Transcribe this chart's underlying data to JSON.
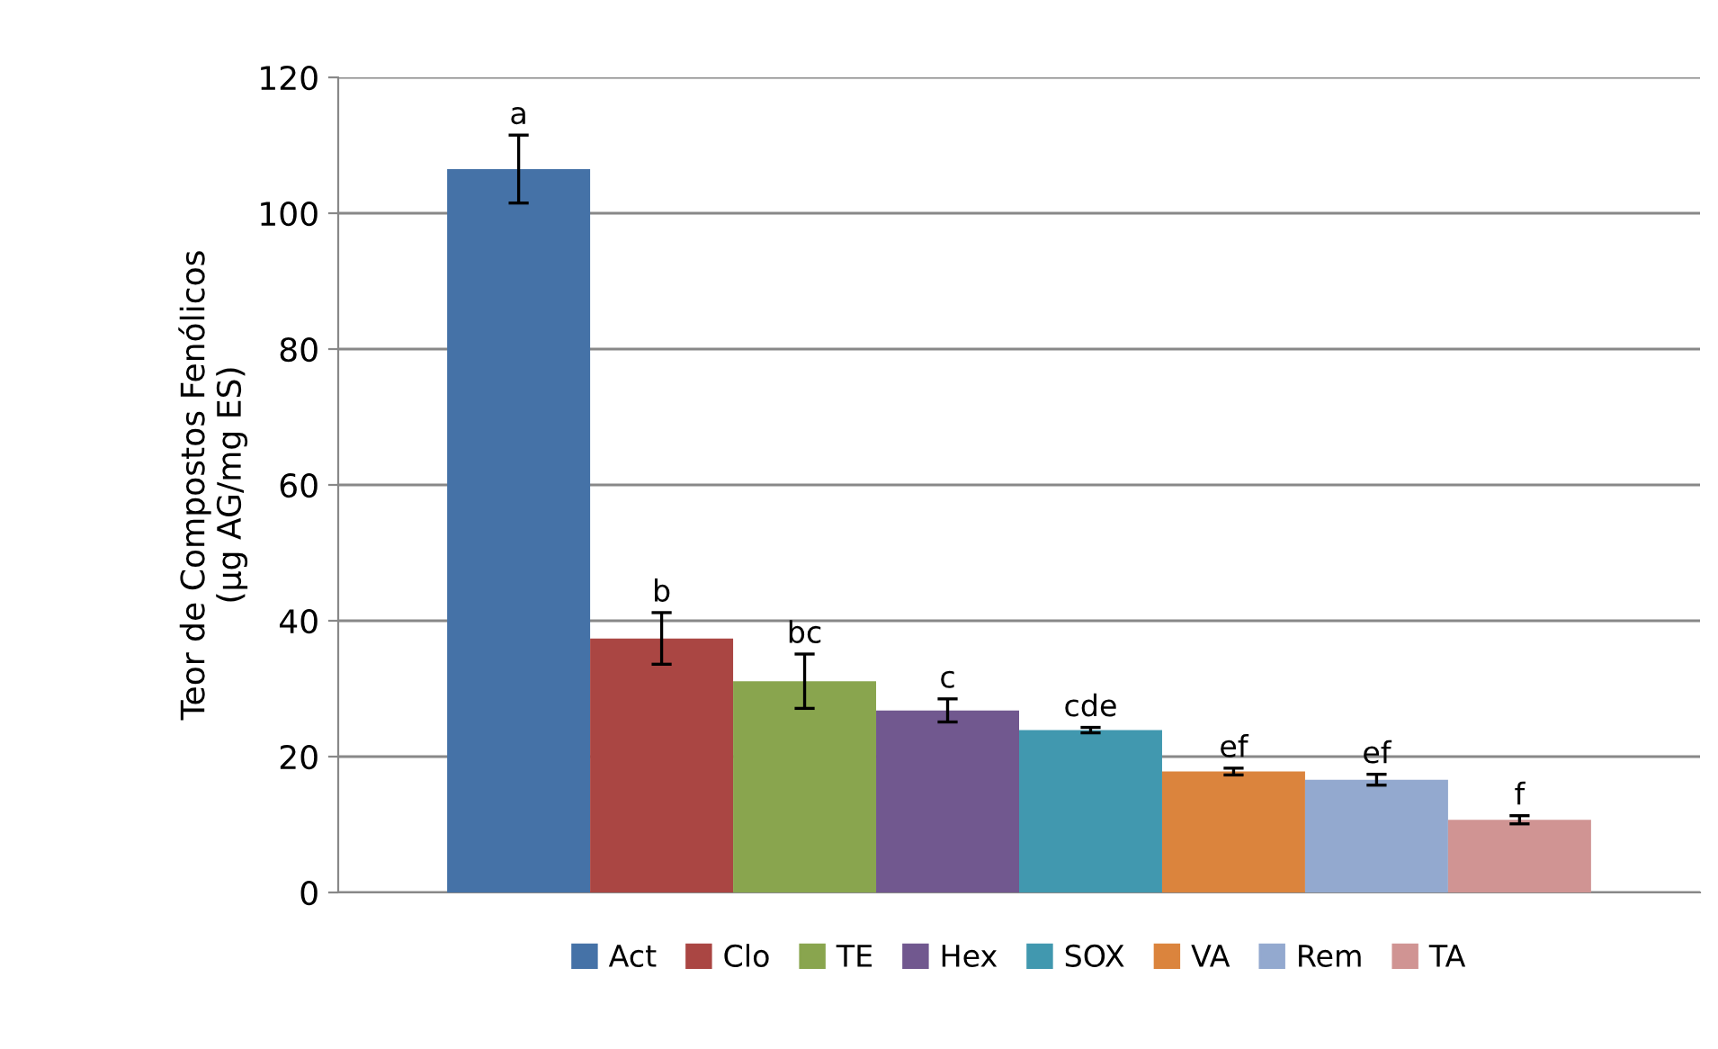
{
  "chart_data": {
    "type": "bar",
    "ylabel": "Teor de Compostos Fenólicos\n(µg AG/mg ES)",
    "categories": [
      null
    ],
    "ylim": [
      0,
      120
    ],
    "yticks": [
      0,
      20,
      40,
      60,
      80,
      100,
      120
    ],
    "grid": "y",
    "legend": "bottom",
    "series": [
      {
        "name": "Act",
        "color": "#4572a7",
        "values": [
          106.5
        ],
        "errors": [
          5
        ]
      },
      {
        "name": "Clo",
        "color": "#aa4643",
        "values": [
          37.4
        ],
        "errors": [
          3.8
        ]
      },
      {
        "name": "TE",
        "color": "#89a54e",
        "values": [
          31.1
        ],
        "errors": [
          4
        ]
      },
      {
        "name": "Hex",
        "color": "#71588f",
        "values": [
          26.8
        ],
        "errors": [
          1.7
        ]
      },
      {
        "name": "SOX",
        "color": "#4198af",
        "values": [
          23.9
        ],
        "errors": [
          0.4
        ]
      },
      {
        "name": "VA",
        "color": "#db843d",
        "values": [
          17.8
        ],
        "errors": [
          0.5
        ]
      },
      {
        "name": "Rem",
        "color": "#93a9cf",
        "values": [
          16.6
        ],
        "errors": [
          0.8
        ]
      },
      {
        "name": "TA",
        "color": "#d09493",
        "values": [
          10.7
        ],
        "errors": [
          0.6
        ]
      }
    ],
    "annotations": [
      "a",
      "b",
      "bc",
      "c",
      "cde",
      "ef",
      "ef",
      "f"
    ]
  }
}
